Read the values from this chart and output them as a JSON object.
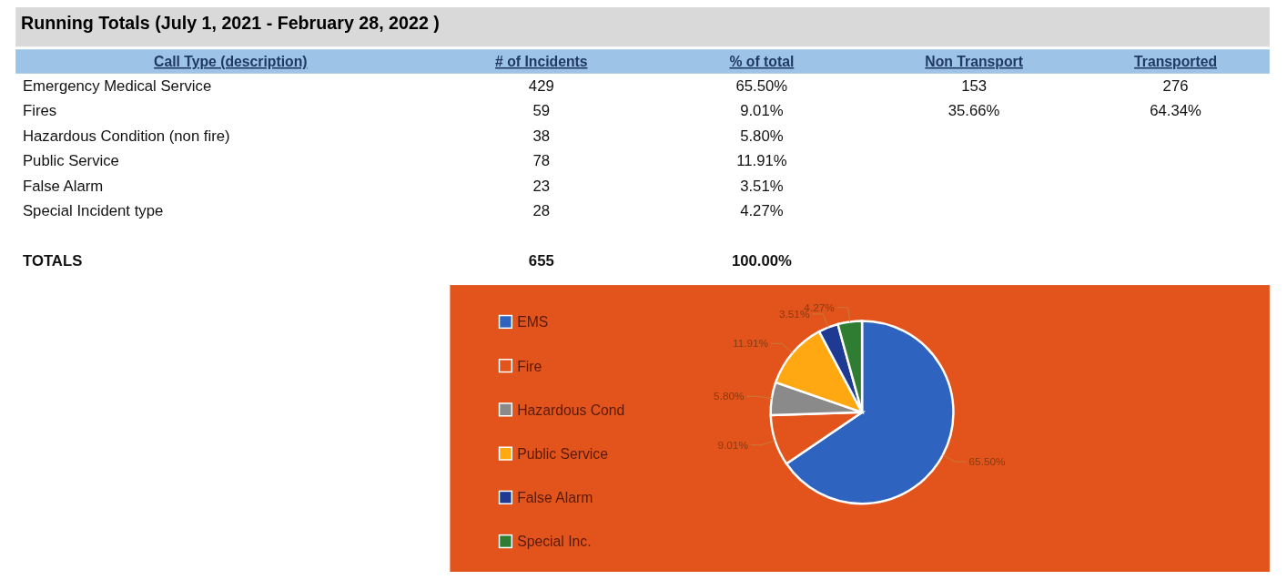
{
  "chart_data": [
    {
      "type": "other",
      "title": "Running Totals (July 1, 2021 - February 28, 2022 )",
      "ylabel": "Call Type (description)",
      "categories": [
        "Emergency Medical Service",
        "Fires",
        "Hazardous Condition (non fire)",
        "Public Service",
        "False Alarm",
        "Special Incident type",
        "TOTALS"
      ],
      "series": [
        {
          "name": "# of Incidents",
          "values": [
            429,
            59,
            38,
            78,
            23,
            28,
            655
          ],
          "value_labels": [
            "429",
            "59",
            "38",
            "78",
            "23",
            "28",
            "655"
          ]
        },
        {
          "name": "% of total",
          "values": [
            65.5,
            9.01,
            5.8,
            11.91,
            3.51,
            4.27,
            100.0
          ],
          "value_labels": [
            "65.50%",
            "9.01%",
            "5.80%",
            "11.91%",
            "3.51%",
            "4.27%",
            "100.00%"
          ]
        },
        {
          "name": "Non Transport",
          "values": [
            153,
            35.66,
            null,
            null,
            null,
            null,
            null
          ],
          "value_labels": [
            "153",
            "35.66%",
            null,
            null,
            null,
            null,
            null
          ]
        },
        {
          "name": "Transported",
          "values": [
            276,
            64.34,
            null,
            null,
            null,
            null,
            null
          ],
          "value_labels": [
            "276",
            "64.34%",
            null,
            null,
            null,
            null,
            null
          ]
        }
      ]
    },
    {
      "type": "pie",
      "categories": [
        "EMS",
        "Fire",
        "Hazardous Cond",
        "Public Service",
        "False Alarm",
        "Special Inc."
      ],
      "values": [
        65.5,
        9.01,
        5.8,
        11.91,
        3.51,
        4.27
      ],
      "colors": [
        "#2e63c0",
        "#e2541c",
        "#8a8a8a",
        "#ffa812",
        "#1f3a93",
        "#2f7d32"
      ],
      "value_labels": [
        "65.50%",
        "9.01%",
        "5.80%",
        "11.91%",
        "3.51%",
        "4.27%"
      ],
      "legend": "left"
    }
  ]
}
